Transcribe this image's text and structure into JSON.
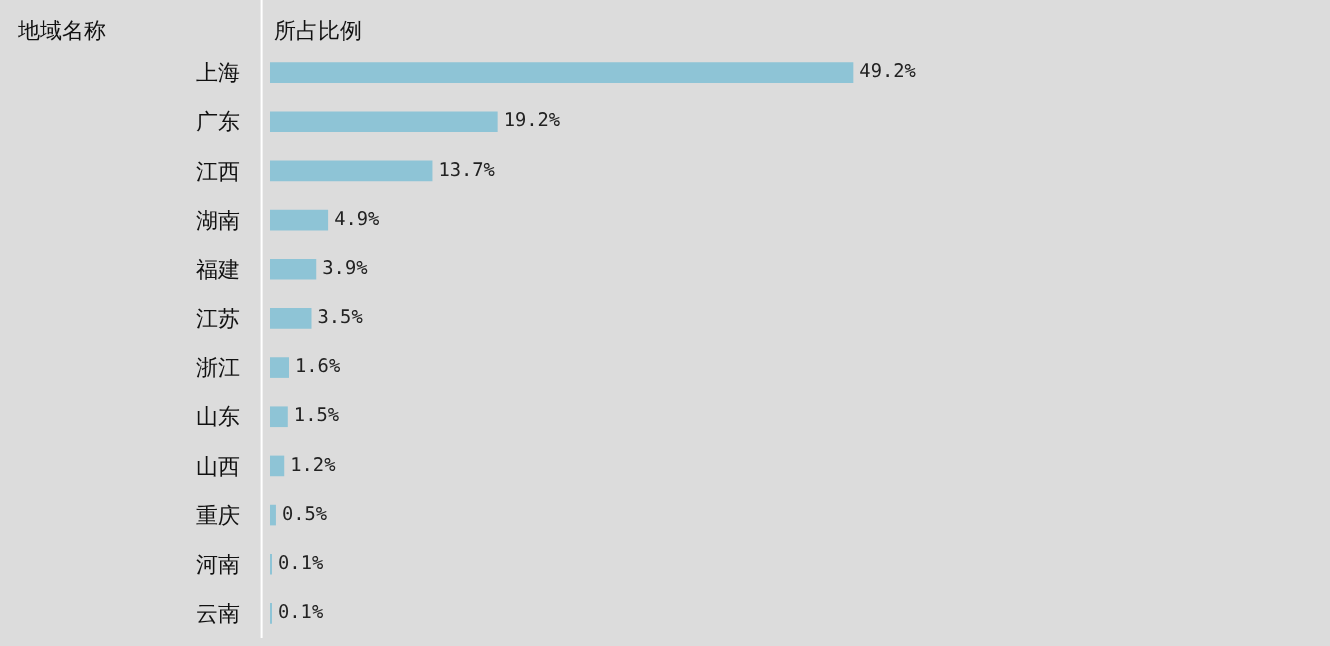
{
  "chart_data": {
    "type": "bar",
    "orientation": "horizontal",
    "xlabel": "所占比例",
    "annotations": [
      "地域名称"
    ],
    "categories": [
      "上海",
      "广东",
      "江西",
      "湖南",
      "福建",
      "江苏",
      "浙江",
      "山东",
      "山西",
      "重庆",
      "河南",
      "云南"
    ],
    "values": [
      49.2,
      19.2,
      13.7,
      4.9,
      3.9,
      3.5,
      1.6,
      1.5,
      1.2,
      0.5,
      0.1,
      0.1
    ],
    "value_labels": [
      "49.2%",
      "19.2%",
      "13.7%",
      "4.9%",
      "3.9%",
      "3.5%",
      "1.6%",
      "1.5%",
      "1.2%",
      "0.5%",
      "0.1%",
      "0.1%"
    ],
    "color": "#8ec4d6",
    "grid": false,
    "legend": false
  }
}
